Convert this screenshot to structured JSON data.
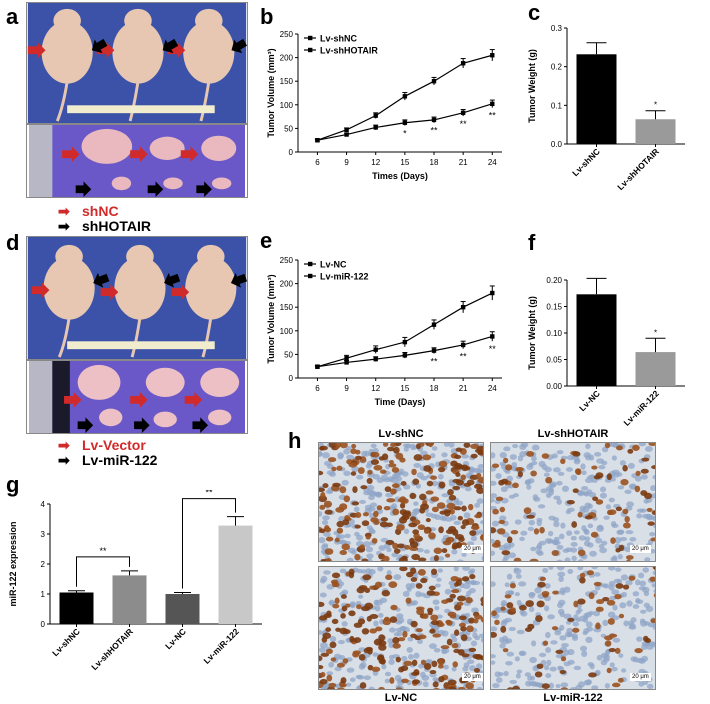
{
  "panels": {
    "a": "a",
    "b": "b",
    "c": "c",
    "d": "d",
    "e": "e",
    "f": "f",
    "g": "g",
    "h": "h"
  },
  "legend_a": {
    "item1": "shNC",
    "item1_color": "#d12a2a",
    "item2": "shHOTAIR",
    "item2_color": "#000000"
  },
  "legend_d": {
    "item1": "Lv-Vector",
    "item1_color": "#d12a2a",
    "item2": "Lv-miR-122",
    "item2_color": "#000000"
  },
  "ihc": {
    "titles": [
      "Lv-shNC",
      "Lv-shHOTAIR"
    ],
    "bottom_titles": [
      "Lv-NC",
      "Lv-miR-122"
    ],
    "scale_label": "20 μm"
  },
  "chart_data": [
    {
      "id": "b",
      "type": "line",
      "ylabel": "Tumor Volume (mm³)",
      "xlabel": "Times (Days)",
      "x": [
        6,
        9,
        12,
        15,
        18,
        21,
        24
      ],
      "ylim": [
        0,
        250
      ],
      "yticks": [
        0,
        50,
        100,
        150,
        200,
        250
      ],
      "series": [
        {
          "name": "Lv-shNC",
          "values": [
            25,
            47,
            77,
            118,
            150,
            188,
            205
          ],
          "errors": [
            2,
            4,
            6,
            8,
            8,
            10,
            12
          ],
          "marker": "square"
        },
        {
          "name": "Lv-shHOTAIR",
          "values": [
            25,
            37,
            52,
            62,
            68,
            83,
            102
          ],
          "errors": [
            2,
            3,
            5,
            6,
            6,
            7,
            8
          ],
          "marker": "square"
        }
      ],
      "annotations": [
        {
          "x": 15,
          "text": "*"
        },
        {
          "x": 18,
          "text": "**"
        },
        {
          "x": 21,
          "text": "**"
        },
        {
          "x": 24,
          "text": "**"
        }
      ]
    },
    {
      "id": "c",
      "type": "bar",
      "ylabel": "Tumor Weight (g)",
      "categories": [
        "Lv-shNC",
        "Lv-shHOTAIR"
      ],
      "values": [
        0.232,
        0.064
      ],
      "errors": [
        0.03,
        0.022
      ],
      "colors": [
        "#000000",
        "#9a9a9a"
      ],
      "ylim": [
        0,
        0.3
      ],
      "yticks": [
        "0.0",
        "0.1",
        "0.2",
        "0.3"
      ],
      "annotations": [
        {
          "category": "Lv-shHOTAIR",
          "text": "*"
        }
      ]
    },
    {
      "id": "e",
      "type": "line",
      "ylabel": "Tumor Volume (mm³)",
      "xlabel": "Time (Days)",
      "x": [
        6,
        9,
        12,
        15,
        18,
        21,
        24
      ],
      "ylim": [
        0,
        250
      ],
      "yticks": [
        0,
        50,
        100,
        150,
        200,
        250
      ],
      "series": [
        {
          "name": "Lv-NC",
          "values": [
            24,
            42,
            60,
            76,
            113,
            150,
            180
          ],
          "errors": [
            2,
            6,
            8,
            10,
            10,
            12,
            15
          ],
          "marker": "square"
        },
        {
          "name": "Lv-miR-122",
          "values": [
            24,
            33,
            40,
            48,
            58,
            70,
            88
          ],
          "errors": [
            2,
            4,
            5,
            6,
            6,
            8,
            10
          ],
          "marker": "square"
        }
      ],
      "annotations": [
        {
          "x": 18,
          "text": "**"
        },
        {
          "x": 21,
          "text": "**"
        },
        {
          "x": 24,
          "text": "**"
        }
      ]
    },
    {
      "id": "f",
      "type": "bar",
      "ylabel": "Tumor Weight (g)",
      "categories": [
        "Lv-NC",
        "Lv-miR-122"
      ],
      "values": [
        0.173,
        0.064
      ],
      "errors": [
        0.03,
        0.026
      ],
      "colors": [
        "#000000",
        "#9a9a9a"
      ],
      "ylim": [
        0,
        0.2
      ],
      "yticks": [
        "0.00",
        "0.05",
        "0.10",
        "0.15",
        "0.20"
      ],
      "annotations": [
        {
          "category": "Lv-miR-122",
          "text": "*"
        }
      ]
    },
    {
      "id": "g",
      "type": "bar",
      "ylabel": "miR-122 expression",
      "categories": [
        "Lv-shNC",
        "Lv-shHOTAIR",
        "Lv-NC",
        "Lv-miR-122"
      ],
      "values": [
        1.05,
        1.62,
        1.0,
        3.28
      ],
      "errors": [
        0.06,
        0.15,
        0.05,
        0.3
      ],
      "colors": [
        "#000000",
        "#8c8c8c",
        "#555555",
        "#c8c8c8"
      ],
      "ylim": [
        0,
        4
      ],
      "yticks": [
        0,
        1,
        2,
        3,
        4
      ],
      "comparisons": [
        {
          "from": 0,
          "to": 1,
          "text": "**"
        },
        {
          "from": 2,
          "to": 3,
          "text": "**"
        }
      ]
    }
  ]
}
